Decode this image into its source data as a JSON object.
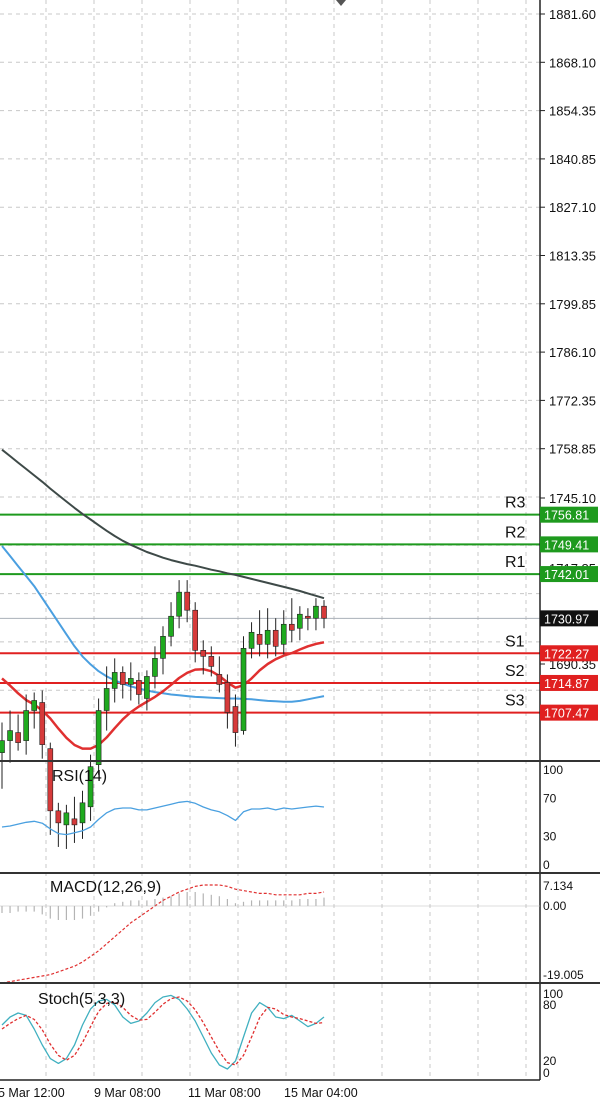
{
  "colors": {
    "bull": "#1faa1f",
    "bear": "#d63a3a",
    "wick": "#222222",
    "grid": "#c8c8c8",
    "ma_slow": "#3e4a48",
    "ma_mid": "#4a9fe0",
    "ma_fast": "#e03030",
    "resistance": "#1e9a1e",
    "support": "#e02020",
    "rsi": "#4aa0e0",
    "macd_hist": "#b4b4b4",
    "macd_signal": "#e03030",
    "stoch_main": "#40b0c0",
    "stoch_signal": "#e03030"
  },
  "price_scale": {
    "labels": [
      "1881.60",
      "1868.10",
      "1854.35",
      "1840.85",
      "1827.10",
      "1813.35",
      "1799.85",
      "1786.10",
      "1772.35",
      "1758.85",
      "1745.10",
      "1717.85",
      "1704.10",
      "1690.35",
      "1676.85"
    ]
  },
  "levels": [
    {
      "name": "R3",
      "value": 1756.81,
      "tag": "1756.81",
      "kind": "resistance"
    },
    {
      "name": "R2",
      "value": 1749.41,
      "tag": "1749.41",
      "kind": "resistance"
    },
    {
      "name": "R1",
      "value": 1742.01,
      "tag": "1742.01",
      "kind": "resistance"
    },
    {
      "name": "S1",
      "value": 1722.27,
      "tag": "1722.27",
      "kind": "support"
    },
    {
      "name": "S2",
      "value": 1714.87,
      "tag": "1714.87",
      "kind": "support"
    },
    {
      "name": "S3",
      "value": 1707.47,
      "tag": "1707.47",
      "kind": "support"
    }
  ],
  "current_price": {
    "value": 1730.97,
    "tag": "1730.97"
  },
  "time_axis": {
    "labels": [
      "5 Mar 12:00",
      "9 Mar 08:00",
      "11 Mar 08:00",
      "15 Mar 04:00"
    ]
  },
  "indicators": {
    "rsi": {
      "title": "RSI(14)",
      "scale": [
        "100",
        "70",
        "30",
        "0"
      ]
    },
    "macd": {
      "title": "MACD(12,26,9)",
      "scale": [
        "7.134",
        "0.00",
        "-19.005"
      ]
    },
    "stoch": {
      "title": "Stoch(5,3,3)",
      "scale": [
        "100",
        "80",
        "20",
        "0"
      ]
    }
  },
  "chart_data": {
    "type": "candlestick",
    "symbol_timeframe": "",
    "ylim": [
      1671.5,
      1886.5
    ],
    "candles": [
      {
        "o": 1697.5,
        "h": 1705.0,
        "l": 1688.5,
        "c": 1700.5
      },
      {
        "o": 1700.5,
        "h": 1708.0,
        "l": 1695.0,
        "c": 1703.0
      },
      {
        "o": 1702.5,
        "h": 1707.0,
        "l": 1698.0,
        "c": 1700.0
      },
      {
        "o": 1700.5,
        "h": 1712.0,
        "l": 1697.0,
        "c": 1708.0
      },
      {
        "o": 1708.0,
        "h": 1712.5,
        "l": 1703.5,
        "c": 1710.5
      },
      {
        "o": 1710.0,
        "h": 1713.0,
        "l": 1696.0,
        "c": 1699.5
      },
      {
        "o": 1698.5,
        "h": 1700.0,
        "l": 1677.0,
        "c": 1683.0
      },
      {
        "o": 1683.0,
        "h": 1685.0,
        "l": 1674.0,
        "c": 1680.0
      },
      {
        "o": 1679.5,
        "h": 1684.5,
        "l": 1673.5,
        "c": 1682.5
      },
      {
        "o": 1681.0,
        "h": 1686.5,
        "l": 1675.0,
        "c": 1679.5
      },
      {
        "o": 1680.0,
        "h": 1688.0,
        "l": 1676.0,
        "c": 1685.0
      },
      {
        "o": 1684.0,
        "h": 1697.0,
        "l": 1680.5,
        "c": 1694.0
      },
      {
        "o": 1694.5,
        "h": 1711.0,
        "l": 1692.0,
        "c": 1708.0
      },
      {
        "o": 1708.0,
        "h": 1719.0,
        "l": 1703.0,
        "c": 1713.5
      },
      {
        "o": 1713.5,
        "h": 1721.0,
        "l": 1710.0,
        "c": 1717.5
      },
      {
        "o": 1717.5,
        "h": 1719.0,
        "l": 1711.0,
        "c": 1714.5
      },
      {
        "o": 1714.5,
        "h": 1720.0,
        "l": 1710.5,
        "c": 1716.0
      },
      {
        "o": 1715.5,
        "h": 1717.5,
        "l": 1709.5,
        "c": 1712.0
      },
      {
        "o": 1711.0,
        "h": 1718.0,
        "l": 1708.0,
        "c": 1716.5
      },
      {
        "o": 1716.5,
        "h": 1724.0,
        "l": 1713.5,
        "c": 1721.0
      },
      {
        "o": 1721.0,
        "h": 1729.0,
        "l": 1717.0,
        "c": 1726.5
      },
      {
        "o": 1726.5,
        "h": 1735.0,
        "l": 1724.0,
        "c": 1731.5
      },
      {
        "o": 1731.5,
        "h": 1740.5,
        "l": 1728.5,
        "c": 1737.5
      },
      {
        "o": 1737.5,
        "h": 1740.5,
        "l": 1730.0,
        "c": 1733.0
      },
      {
        "o": 1733.0,
        "h": 1735.0,
        "l": 1720.0,
        "c": 1723.0
      },
      {
        "o": 1723.0,
        "h": 1725.5,
        "l": 1717.0,
        "c": 1721.5
      },
      {
        "o": 1721.5,
        "h": 1724.0,
        "l": 1716.5,
        "c": 1719.0
      },
      {
        "o": 1717.0,
        "h": 1721.5,
        "l": 1712.5,
        "c": 1714.5
      },
      {
        "o": 1715.0,
        "h": 1717.0,
        "l": 1703.5,
        "c": 1707.5
      },
      {
        "o": 1709.0,
        "h": 1712.0,
        "l": 1699.0,
        "c": 1702.5
      },
      {
        "o": 1703.0,
        "h": 1726.5,
        "l": 1702.0,
        "c": 1723.5
      },
      {
        "o": 1723.5,
        "h": 1730.0,
        "l": 1721.0,
        "c": 1727.5
      },
      {
        "o": 1727.0,
        "h": 1733.0,
        "l": 1721.5,
        "c": 1724.5
      },
      {
        "o": 1724.5,
        "h": 1733.5,
        "l": 1721.0,
        "c": 1728.0
      },
      {
        "o": 1728.0,
        "h": 1731.0,
        "l": 1721.5,
        "c": 1724.0
      },
      {
        "o": 1724.5,
        "h": 1733.0,
        "l": 1722.0,
        "c": 1729.5
      },
      {
        "o": 1729.5,
        "h": 1736.0,
        "l": 1725.0,
        "c": 1728.0
      },
      {
        "o": 1728.5,
        "h": 1734.0,
        "l": 1725.5,
        "c": 1732.0
      },
      {
        "o": 1731.5,
        "h": 1733.5,
        "l": 1728.0,
        "c": 1731.0
      },
      {
        "o": 1731.0,
        "h": 1736.0,
        "l": 1728.0,
        "c": 1734.0
      },
      {
        "o": 1734.0,
        "h": 1735.5,
        "l": 1728.5,
        "c": 1731.0
      }
    ],
    "ma_slow": [
      1773.0,
      1771.4,
      1769.8,
      1768.2,
      1766.6,
      1765.0,
      1763.3,
      1761.7,
      1760.1,
      1758.5,
      1757.0,
      1755.6,
      1754.2,
      1752.8,
      1751.5,
      1750.3,
      1749.3,
      1748.4,
      1747.5,
      1746.8,
      1746.1,
      1745.5,
      1745.0,
      1744.5,
      1744.1,
      1743.6,
      1743.1,
      1742.7,
      1742.2,
      1741.8,
      1741.3,
      1740.8,
      1740.3,
      1739.8,
      1739.3,
      1738.8,
      1738.3,
      1737.8,
      1737.2,
      1736.6,
      1736.0
    ],
    "ma_mid": [
      1749.0,
      1746.5,
      1744.0,
      1741.5,
      1739.0,
      1736.0,
      1733.0,
      1730.0,
      1727.0,
      1724.0,
      1721.5,
      1719.5,
      1717.8,
      1716.5,
      1715.5,
      1714.7,
      1714.0,
      1713.5,
      1713.0,
      1712.6,
      1712.3,
      1712.0,
      1711.8,
      1711.6,
      1711.4,
      1711.3,
      1711.2,
      1711.1,
      1711.0,
      1711.0,
      1710.9,
      1710.8,
      1710.6,
      1710.4,
      1710.3,
      1710.2,
      1710.2,
      1710.4,
      1710.8,
      1711.2,
      1711.6
    ],
    "ma_fast": [
      1716.0,
      1714.2,
      1712.3,
      1710.6,
      1709.5,
      1708.0,
      1706.0,
      1703.5,
      1701.2,
      1699.4,
      1698.5,
      1698.5,
      1699.4,
      1701.3,
      1703.6,
      1705.8,
      1707.6,
      1709.0,
      1710.2,
      1711.4,
      1712.8,
      1714.4,
      1716.1,
      1717.4,
      1718.2,
      1718.3,
      1717.8,
      1716.6,
      1715.0,
      1713.7,
      1714.3,
      1716.0,
      1718.0,
      1719.6,
      1720.8,
      1721.7,
      1722.3,
      1723.2,
      1724.0,
      1724.6,
      1725.0
    ],
    "rsi": [
      40,
      41,
      43,
      45,
      46,
      44,
      38,
      33,
      32,
      34,
      36,
      40,
      48,
      55,
      59,
      60,
      60,
      58,
      58,
      60,
      62,
      64,
      66,
      67,
      65,
      61,
      58,
      56,
      52,
      47,
      56,
      59,
      59,
      60,
      58,
      60,
      59,
      60,
      61,
      62,
      61
    ],
    "macd_hist": [
      -0.05,
      -0.05,
      -0.04,
      -0.04,
      -0.04,
      -0.06,
      -0.09,
      -0.1,
      -0.1,
      -0.1,
      -0.09,
      -0.07,
      -0.04,
      -0.01,
      0.02,
      0.03,
      0.04,
      0.04,
      0.04,
      0.05,
      0.06,
      0.07,
      0.09,
      0.1,
      0.1,
      0.09,
      0.08,
      0.07,
      0.05,
      0.02,
      0.03,
      0.04,
      0.04,
      0.04,
      0.04,
      0.04,
      0.04,
      0.05,
      0.05,
      0.05,
      0.06
    ],
    "macd_signal": [
      -0.55,
      -0.54,
      -0.53,
      -0.52,
      -0.51,
      -0.5,
      -0.49,
      -0.47,
      -0.45,
      -0.43,
      -0.4,
      -0.36,
      -0.32,
      -0.27,
      -0.22,
      -0.17,
      -0.12,
      -0.08,
      -0.04,
      0.0,
      0.04,
      0.07,
      0.1,
      0.12,
      0.14,
      0.15,
      0.15,
      0.15,
      0.14,
      0.12,
      0.11,
      0.1,
      0.09,
      0.09,
      0.08,
      0.08,
      0.08,
      0.08,
      0.09,
      0.09,
      0.1
    ],
    "stoch_main": [
      60,
      70,
      75,
      72,
      55,
      35,
      18,
      12,
      18,
      35,
      60,
      80,
      90,
      92,
      85,
      70,
      62,
      65,
      75,
      88,
      95,
      97,
      92,
      80,
      65,
      45,
      25,
      10,
      5,
      15,
      45,
      75,
      88,
      82,
      70,
      68,
      72,
      65,
      58,
      62,
      70
    ],
    "stoch_signal": [
      55,
      62,
      68,
      72,
      67,
      54,
      36,
      22,
      16,
      22,
      38,
      58,
      77,
      87,
      89,
      82,
      72,
      66,
      67,
      76,
      86,
      93,
      95,
      90,
      79,
      63,
      45,
      27,
      13,
      10,
      22,
      45,
      69,
      82,
      80,
      73,
      70,
      68,
      65,
      62,
      63
    ]
  }
}
